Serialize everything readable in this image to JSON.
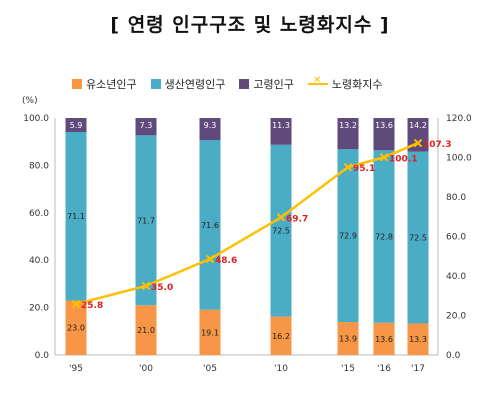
{
  "chart_data": {
    "type": "bar",
    "title": "[ 연령 인구구조 및 노령화지수 ]",
    "y_unit": "(%)",
    "categories": [
      "'95",
      "'00",
      "'05",
      "'10",
      "'15",
      "'16",
      "'17"
    ],
    "series": [
      {
        "name": "유소년인구",
        "type": "bar",
        "values": [
          23.0,
          21.0,
          19.1,
          16.2,
          13.9,
          13.6,
          13.3
        ],
        "color": "#f79646"
      },
      {
        "name": "생산연령인구",
        "type": "bar",
        "values": [
          71.1,
          71.7,
          71.6,
          72.5,
          72.9,
          72.8,
          72.5
        ],
        "color": "#4bacc6"
      },
      {
        "name": "고령인구",
        "type": "bar",
        "values": [
          5.9,
          7.3,
          9.3,
          11.3,
          13.2,
          13.6,
          14.2
        ],
        "color": "#604a7b"
      },
      {
        "name": "노령화지수",
        "type": "line",
        "axis": "right",
        "values": [
          25.8,
          35.0,
          48.6,
          69.7,
          95.1,
          100.1,
          107.3
        ],
        "color": "#ffc000"
      }
    ],
    "left_axis": {
      "min": 0,
      "max": 100,
      "ticks": [
        "0.0",
        "20.0",
        "40.0",
        "60.0",
        "80.0",
        "100.0"
      ]
    },
    "right_axis": {
      "min": 0,
      "max": 120,
      "ticks": [
        "0.0",
        "20.0",
        "40.0",
        "60.0",
        "80.0",
        "100.0",
        "120.0"
      ]
    },
    "stacked": true,
    "legend_position": "top"
  }
}
